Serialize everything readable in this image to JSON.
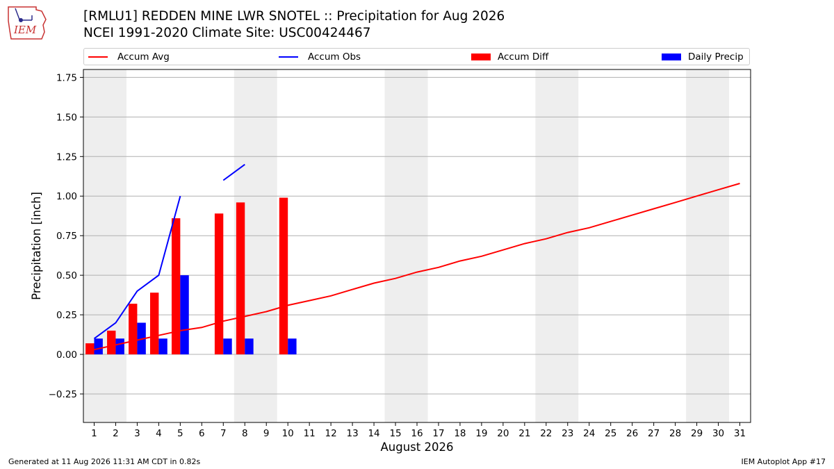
{
  "header": {
    "logo_text": "IEM",
    "title_line1": "[RMLU1] REDDEN MINE LWR SNOTEL :: Precipitation for Aug 2026",
    "title_line2": "NCEI 1991-2020 Climate Site: USC00424467"
  },
  "footer": {
    "generated": "Generated at 11 Aug 2026 11:31 AM CDT in 0.82s",
    "app": "IEM Autoplot App #17"
  },
  "colors": {
    "avg": "#ff0000",
    "obs": "#0000ff",
    "diff": "#ff0000",
    "daily": "#0000ff",
    "weekend": "#eeeeee",
    "grid": "#b0b0b0"
  },
  "chart_data": {
    "type": "bar",
    "xlabel": "August 2026",
    "ylabel": "Precipitation [inch]",
    "xlim": [
      0.5,
      31.5
    ],
    "ylim": [
      -0.43,
      1.8
    ],
    "yticks": [
      -0.25,
      0.0,
      0.25,
      0.5,
      0.75,
      1.0,
      1.25,
      1.5,
      1.75
    ],
    "ytick_labels": [
      "−0.25",
      "0.00",
      "0.25",
      "0.50",
      "0.75",
      "1.00",
      "1.25",
      "1.50",
      "1.75"
    ],
    "days": [
      1,
      2,
      3,
      4,
      5,
      6,
      7,
      8,
      9,
      10,
      11,
      12,
      13,
      14,
      15,
      16,
      17,
      18,
      19,
      20,
      21,
      22,
      23,
      24,
      25,
      26,
      27,
      28,
      29,
      30,
      31
    ],
    "weekend_spans": [
      [
        0.5,
        2.5
      ],
      [
        7.5,
        9.5
      ],
      [
        14.5,
        16.5
      ],
      [
        21.5,
        23.5
      ],
      [
        28.5,
        30.5
      ]
    ],
    "grid": true,
    "legend_position": "top",
    "series": [
      {
        "name": "Accum Avg",
        "kind": "line",
        "x": [
          1,
          2,
          3,
          4,
          5,
          6,
          7,
          8,
          9,
          10,
          11,
          12,
          13,
          14,
          15,
          16,
          17,
          18,
          19,
          20,
          21,
          22,
          23,
          24,
          25,
          26,
          27,
          28,
          29,
          30,
          31
        ],
        "values": [
          0.03,
          0.06,
          0.09,
          0.12,
          0.15,
          0.17,
          0.21,
          0.24,
          0.27,
          0.31,
          0.34,
          0.37,
          0.41,
          0.45,
          0.48,
          0.52,
          0.55,
          0.59,
          0.62,
          0.66,
          0.7,
          0.73,
          0.77,
          0.8,
          0.84,
          0.88,
          0.92,
          0.96,
          1.0,
          1.04,
          1.08
        ]
      },
      {
        "name": "Accum Obs",
        "kind": "line",
        "segments": [
          {
            "x": [
              1,
              2,
              3,
              4,
              5
            ],
            "values": [
              0.1,
              0.2,
              0.4,
              0.5,
              1.0
            ]
          },
          {
            "x": [
              7,
              8
            ],
            "values": [
              1.1,
              1.2
            ]
          }
        ]
      },
      {
        "name": "Accum Diff",
        "kind": "bar",
        "x": [
          1,
          2,
          3,
          4,
          5,
          7,
          8,
          10
        ],
        "values": [
          0.07,
          0.15,
          0.32,
          0.39,
          0.86,
          0.89,
          0.96,
          0.99
        ]
      },
      {
        "name": "Daily Precip",
        "kind": "bar",
        "x": [
          1,
          2,
          3,
          4,
          5,
          7,
          8,
          10
        ],
        "values": [
          0.1,
          0.1,
          0.2,
          0.1,
          0.5,
          0.1,
          0.1,
          0.1
        ]
      }
    ]
  }
}
